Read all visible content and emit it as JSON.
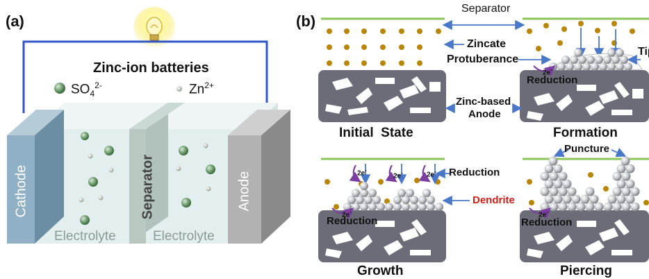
{
  "panel_a": {
    "label": "(a)",
    "title": "Zinc-ion batteries",
    "legend_sulfate_base": "SO",
    "legend_sulfate_sub": "4",
    "legend_sulfate_sup": "2-",
    "legend_zinc_base": "Zn",
    "legend_zinc_sup": "2+",
    "cathode": "Cathode",
    "anode": "Anode",
    "separator": "Separator",
    "electrolyte_left": "Electrolyte",
    "electrolyte_right": "Electrolyte"
  },
  "panel_b": {
    "label": "(b)",
    "separator_label": "Separator",
    "zincate_label": "Zincate",
    "protuberance_label": "Protuberance",
    "tip_label": "Tip",
    "anode_label_line1": "Zinc-based",
    "anode_label_line2": "Anode",
    "electron_label": "2e",
    "electron_sup": "-",
    "reduction_label": "Reduction",
    "dendrite_label": "Dendrite",
    "puncture_label": "Puncture",
    "stages": {
      "initial": "Initial  State",
      "formation": "Formation",
      "growth": "Growth",
      "piercing": "Piercing"
    }
  },
  "colors": {
    "cathode": "#7f9fb4",
    "anode": "#9e9e9e",
    "separator_wall": "#b9c9c2",
    "electrolyte": "#e3efee",
    "wire": "#2f55c8",
    "sulfate": "#6e9a6e",
    "zincate": "#b8860b",
    "separator_line": "#8cc65a",
    "anode_block": "#6c6c78",
    "arrow": "#4a78c8",
    "dendrite_text": "#d0201a",
    "electron_arc": "#7a3fa0"
  }
}
